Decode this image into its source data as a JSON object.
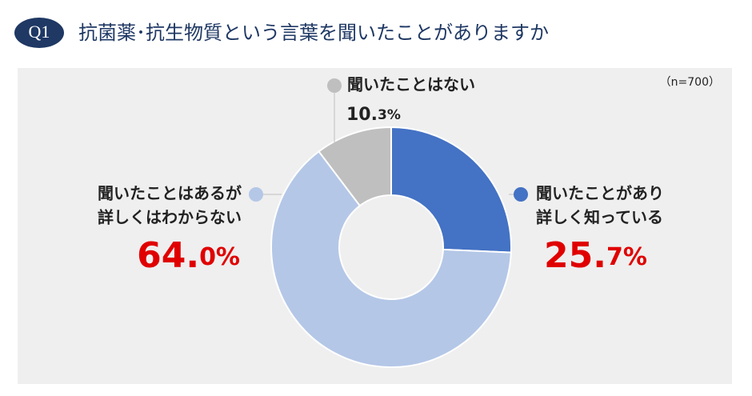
{
  "badge": "Q1",
  "chart_data": {
    "type": "donut",
    "title": "抗菌薬･抗生物質という言葉を聞いたことがありますか",
    "note": "（n=700）",
    "categories": [
      [
        "聞いたことがあり",
        "詳しく知っている"
      ],
      [
        "聞いたことはあるが",
        "詳しくはわからない"
      ],
      [
        "聞いたことはない"
      ]
    ],
    "values": [
      25.7,
      64.0,
      10.3
    ],
    "value_labels": [
      "25.7%",
      "64.0%",
      "10.3%"
    ],
    "colors": [
      "#4472c4",
      "#b4c7e7",
      "#bfbfbf"
    ]
  }
}
